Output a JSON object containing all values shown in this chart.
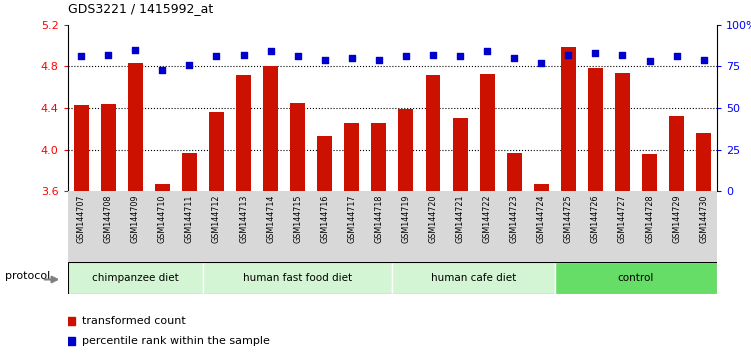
{
  "title": "GDS3221 / 1415992_at",
  "samples": [
    "GSM144707",
    "GSM144708",
    "GSM144709",
    "GSM144710",
    "GSM144711",
    "GSM144712",
    "GSM144713",
    "GSM144714",
    "GSM144715",
    "GSM144716",
    "GSM144717",
    "GSM144718",
    "GSM144719",
    "GSM144720",
    "GSM144721",
    "GSM144722",
    "GSM144723",
    "GSM144724",
    "GSM144725",
    "GSM144726",
    "GSM144727",
    "GSM144728",
    "GSM144729",
    "GSM144730"
  ],
  "bar_values": [
    4.43,
    4.44,
    4.83,
    3.67,
    3.97,
    4.36,
    4.72,
    4.8,
    4.45,
    4.13,
    4.26,
    4.26,
    4.39,
    4.72,
    4.3,
    4.73,
    3.97,
    3.67,
    4.99,
    4.78,
    4.74,
    3.96,
    4.32,
    4.16
  ],
  "blue_values": [
    81,
    82,
    85,
    73,
    76,
    81,
    82,
    84,
    81,
    79,
    80,
    79,
    81,
    82,
    81,
    84,
    80,
    77,
    82,
    83,
    82,
    78,
    81,
    79
  ],
  "groups": [
    {
      "label": "chimpanzee diet",
      "start": 0,
      "end": 5
    },
    {
      "label": "human fast food diet",
      "start": 5,
      "end": 12
    },
    {
      "label": "human cafe diet",
      "start": 12,
      "end": 18
    },
    {
      "label": "control",
      "start": 18,
      "end": 24
    }
  ],
  "group_colors": [
    "#d4f5d4",
    "#d4f5d4",
    "#d4f5d4",
    "#66dd66"
  ],
  "ylim_left": [
    3.6,
    5.2
  ],
  "ylim_right": [
    0,
    100
  ],
  "yticks_left": [
    3.6,
    4.0,
    4.4,
    4.8,
    5.2
  ],
  "yticks_right": [
    0,
    25,
    50,
    75,
    100
  ],
  "ytick_labels_right": [
    "0",
    "25",
    "50",
    "75",
    "100%"
  ],
  "bar_color": "#cc1100",
  "dot_color": "#0000cc",
  "bar_bottom": 3.6,
  "bar_width": 0.55,
  "protocol_label": "protocol",
  "legend_items": [
    {
      "label": "transformed count",
      "color": "#cc1100",
      "marker": "s"
    },
    {
      "label": "percentile rank within the sample",
      "color": "#0000cc",
      "marker": "s"
    }
  ]
}
